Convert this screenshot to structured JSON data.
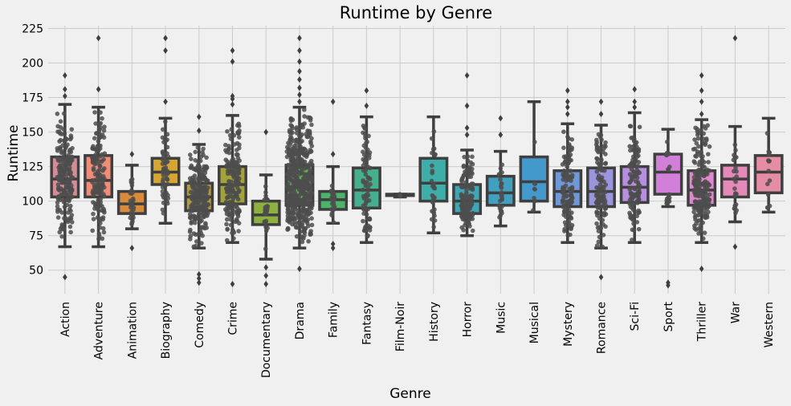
{
  "chart_data": {
    "type": "box",
    "title": "Runtime by Genre",
    "xlabel": "Genre",
    "ylabel": "Runtime",
    "ylim": [
      33,
      227
    ],
    "yticks": [
      50,
      75,
      100,
      125,
      150,
      175,
      200,
      225
    ],
    "grid": true,
    "overlay": "swarm",
    "colors": {
      "background": "#f0f0f0",
      "grid": "#cbcbcb",
      "box_edge": "#3f3f3f",
      "points": "#4d4d4d"
    },
    "categories": [
      "Action",
      "Adventure",
      "Animation",
      "Biography",
      "Comedy",
      "Crime",
      "Documentary",
      "Drama",
      "Family",
      "Fantasy",
      "Film-Noir",
      "History",
      "Horror",
      "Music",
      "Musical",
      "Mystery",
      "Romance",
      "Sci-Fi",
      "Sport",
      "Thriller",
      "War",
      "Western"
    ],
    "series": [
      {
        "category": "Action",
        "color": "#d48c95",
        "min": 67,
        "q1": 103,
        "median": 116,
        "q3": 132,
        "max": 170,
        "outliers": [
          45,
          176,
          181,
          191
        ],
        "n": 190
      },
      {
        "category": "Adventure",
        "color": "#f08c78",
        "min": 67,
        "q1": 103,
        "median": 115,
        "q3": 133,
        "max": 168,
        "outliers": [
          181,
          218
        ],
        "n": 150
      },
      {
        "category": "Animation",
        "color": "#d98b3d",
        "min": 80,
        "q1": 91,
        "median": 98,
        "q3": 107,
        "max": 126,
        "outliers": [
          66,
          134
        ],
        "n": 30
      },
      {
        "category": "Biography",
        "color": "#d6a532",
        "min": 84,
        "q1": 112,
        "median": 121,
        "q3": 131,
        "max": 160,
        "outliers": [
          172,
          209,
          218
        ],
        "n": 60
      },
      {
        "category": "Comedy",
        "color": "#b09a43",
        "min": 66,
        "q1": 93,
        "median": 103,
        "q3": 113,
        "max": 141,
        "outliers": [
          41,
          44,
          47,
          151,
          161
        ],
        "n": 230
      },
      {
        "category": "Crime",
        "color": "#a3a33a",
        "min": 70,
        "q1": 98,
        "median": 112,
        "q3": 125,
        "max": 162,
        "outliers": [
          40,
          170,
          174,
          176,
          201,
          209
        ],
        "n": 170
      },
      {
        "category": "Documentary",
        "color": "#8db03e",
        "min": 58,
        "q1": 83,
        "median": 90,
        "q3": 100,
        "max": 119,
        "outliers": [
          40,
          46,
          52,
          150
        ],
        "n": 25
      },
      {
        "category": "Drama",
        "color": "#5cb050",
        "min": 66,
        "q1": 97,
        "median": 110,
        "q3": 126,
        "max": 168,
        "outliers": [
          51,
          172,
          177,
          182,
          188,
          194,
          201,
          209,
          218
        ],
        "n": 470
      },
      {
        "category": "Family",
        "color": "#4db36b",
        "min": 84,
        "q1": 94,
        "median": 101,
        "q3": 107,
        "max": 125,
        "outliers": [
          66,
          69,
          134,
          172
        ],
        "n": 25
      },
      {
        "category": "Fantasy",
        "color": "#46b08e",
        "min": 70,
        "q1": 95,
        "median": 108,
        "q3": 124,
        "max": 161,
        "outliers": [
          169,
          180
        ],
        "n": 80
      },
      {
        "category": "Film-Noir",
        "color": "#42b0a0",
        "min": 103,
        "q1": 104,
        "median": 104,
        "q3": 105,
        "max": 105,
        "outliers": [],
        "n": 3
      },
      {
        "category": "History",
        "color": "#3eaeaa",
        "min": 77,
        "q1": 100,
        "median": 113,
        "q3": 131,
        "max": 161,
        "outliers": [],
        "n": 30
      },
      {
        "category": "Horror",
        "color": "#3ea7b5",
        "min": 75,
        "q1": 91,
        "median": 100,
        "q3": 112,
        "max": 137,
        "outliers": [
          148,
          153,
          169,
          191
        ],
        "n": 140
      },
      {
        "category": "Music",
        "color": "#41a0c0",
        "min": 82,
        "q1": 97,
        "median": 106,
        "q3": 118,
        "max": 136,
        "outliers": [
          148,
          160
        ],
        "n": 25
      },
      {
        "category": "Musical",
        "color": "#4499cc",
        "min": 92,
        "q1": 100,
        "median": 114,
        "q3": 132,
        "max": 172,
        "outliers": [],
        "n": 8
      },
      {
        "category": "Mystery",
        "color": "#6e98d6",
        "min": 70,
        "q1": 96,
        "median": 107,
        "q3": 122,
        "max": 156,
        "outliers": [
          163,
          168,
          172,
          180
        ],
        "n": 120
      },
      {
        "category": "Romance",
        "color": "#9b96dc",
        "min": 66,
        "q1": 96,
        "median": 107,
        "q3": 124,
        "max": 155,
        "outliers": [
          45,
          163,
          172
        ],
        "n": 110
      },
      {
        "category": "Sci-Fi",
        "color": "#b68fe0",
        "min": 70,
        "q1": 99,
        "median": 110,
        "q3": 125,
        "max": 164,
        "outliers": [
          168,
          172,
          181
        ],
        "n": 120
      },
      {
        "category": "Sport",
        "color": "#d17fd9",
        "min": 96,
        "q1": 105,
        "median": 121,
        "q3": 134,
        "max": 152,
        "outliers": [
          39,
          41
        ],
        "n": 20
      },
      {
        "category": "Thriller",
        "color": "#e087cf",
        "min": 70,
        "q1": 97,
        "median": 108,
        "q3": 122,
        "max": 159,
        "outliers": [
          51,
          163,
          172,
          180,
          191
        ],
        "n": 200
      },
      {
        "category": "War",
        "color": "#e58ab8",
        "min": 85,
        "q1": 103,
        "median": 116,
        "q3": 126,
        "max": 154,
        "outliers": [
          67,
          218
        ],
        "n": 25
      },
      {
        "category": "Western",
        "color": "#e68ca5",
        "min": 92,
        "q1": 106,
        "median": 121,
        "q3": 133,
        "max": 160,
        "outliers": [],
        "n": 15
      }
    ]
  }
}
